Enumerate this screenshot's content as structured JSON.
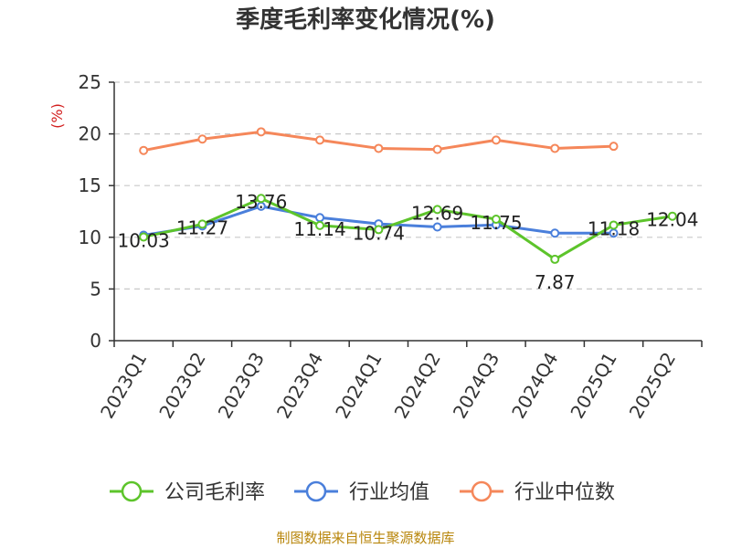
{
  "chart_data": {
    "type": "line",
    "title": "季度毛利率变化情况(%)",
    "ylabel": "(%)",
    "ylim": [
      0,
      25
    ],
    "yticks": [
      0,
      5,
      10,
      15,
      20,
      25
    ],
    "grid": "horizontal dashed",
    "legend_position": "bottom",
    "categories": [
      "2023Q1",
      "2023Q2",
      "2023Q3",
      "2023Q4",
      "2024Q1",
      "2024Q2",
      "2024Q3",
      "2024Q4",
      "2025Q1",
      "2025Q2"
    ],
    "series": [
      {
        "name": "公司毛利率",
        "color": "#5dc42b",
        "values": [
          10.03,
          11.27,
          13.76,
          11.14,
          10.74,
          12.69,
          11.75,
          7.87,
          11.18,
          12.04
        ],
        "labels": [
          "10.03",
          "11.27",
          "13.76",
          "11.14",
          "10.74",
          "12.69",
          "11.75",
          "7.87",
          "11.18",
          "12.04"
        ]
      },
      {
        "name": "行业均值",
        "color": "#4a7fdb",
        "values": [
          10.2,
          11.1,
          13.0,
          11.9,
          11.3,
          11.0,
          11.2,
          10.4,
          10.4,
          null
        ]
      },
      {
        "name": "行业中位数",
        "color": "#f5875a",
        "values": [
          18.4,
          19.5,
          20.2,
          19.4,
          18.6,
          18.5,
          19.4,
          18.6,
          18.8,
          null
        ]
      }
    ]
  },
  "source": "制图数据来自恒生聚源数据库"
}
